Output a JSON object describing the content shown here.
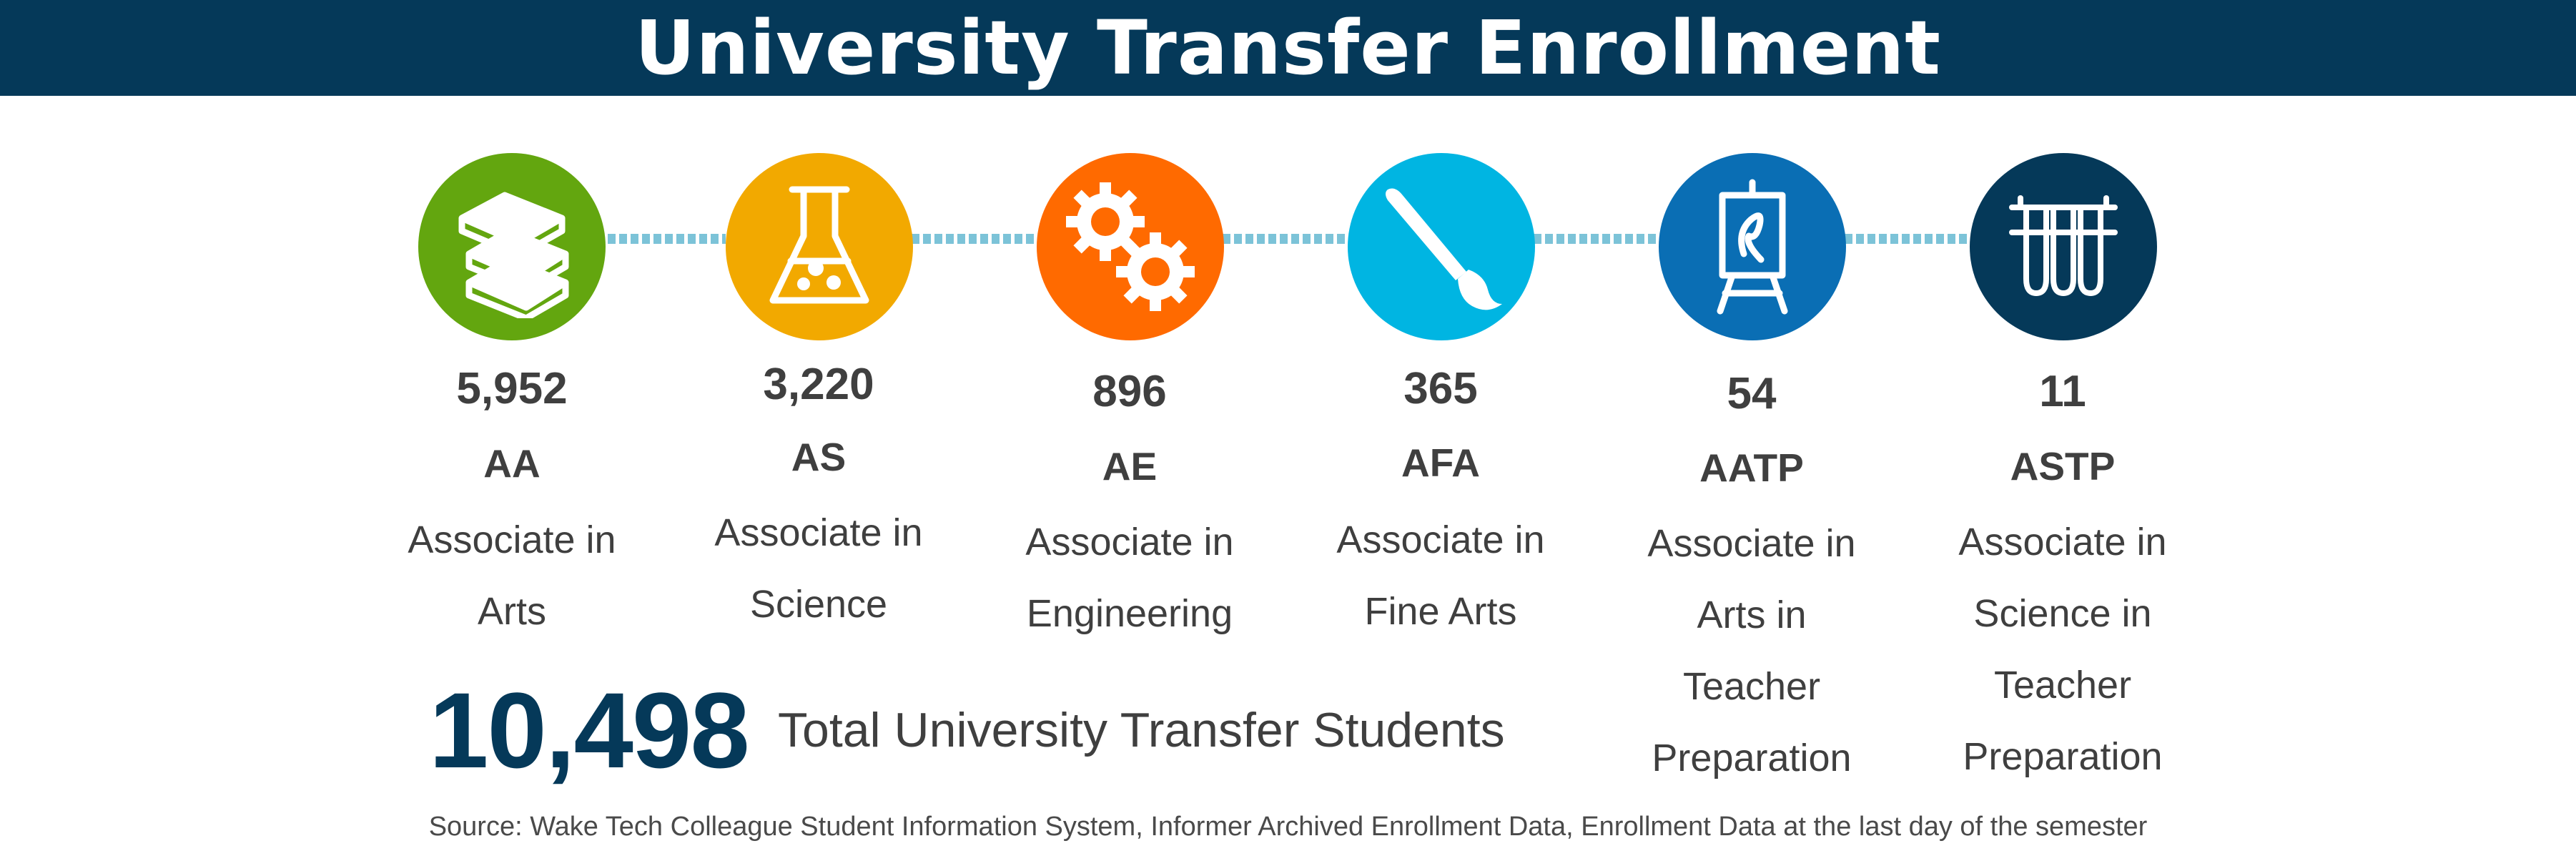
{
  "title": "University Transfer Enrollment",
  "colors": {
    "header": "#053959",
    "aa": "#63a60f",
    "as": "#f2a900",
    "ae": "#ff6a00",
    "afa": "#00b5e2",
    "aatp": "#0a6eb4",
    "astp": "#053959",
    "connector": "#7cc3d8"
  },
  "programs": [
    {
      "count": "5,952",
      "abbr": "AA",
      "name_lines": [
        "Associate in",
        "Arts"
      ],
      "icon": "books-icon"
    },
    {
      "count": "3,220",
      "abbr": "AS",
      "name_lines": [
        "Associate in",
        "Science"
      ],
      "icon": "flask-icon"
    },
    {
      "count": "896",
      "abbr": "AE",
      "name_lines": [
        "Associate in",
        "Engineering"
      ],
      "icon": "gears-icon"
    },
    {
      "count": "365",
      "abbr": "AFA",
      "name_lines": [
        "Associate in",
        "Fine Arts"
      ],
      "icon": "paintbrush-icon"
    },
    {
      "count": "54",
      "abbr": "AATP",
      "name_lines": [
        "Associate in",
        "Arts in",
        "Teacher",
        "Preparation"
      ],
      "icon": "easel-icon"
    },
    {
      "count": "11",
      "abbr": "ASTP",
      "name_lines": [
        "Associate in",
        "Science in",
        "Teacher",
        "Preparation"
      ],
      "icon": "test-tubes-icon"
    }
  ],
  "total": {
    "count": "10,498",
    "label": "Total University Transfer Students"
  },
  "source": "Source: Wake Tech Colleague Student Information System, Informer Archived Enrollment Data, Enrollment Data at the last day of the semester"
}
